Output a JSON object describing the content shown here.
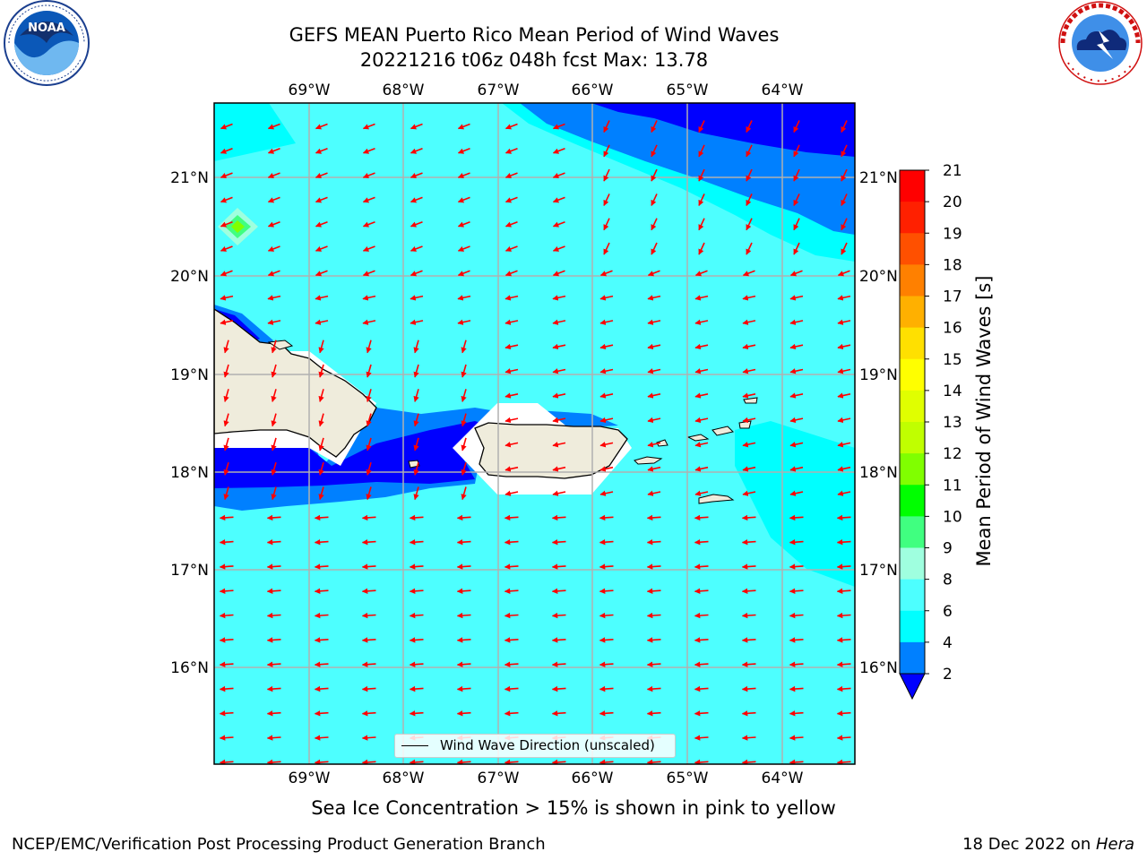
{
  "header": {
    "title_line1": "GEFS MEAN Puerto Rico Mean Period of Wind Waves",
    "title_line2": "20221216 t06z 048h fcst   Max: 13.78"
  },
  "logos": {
    "noaa": {
      "icon": "noaa-logo",
      "text": "NOAA",
      "ring_text": "NATIONAL OCEANIC AND ATMOSPHERIC ADMINISTRATION · U.S. DEPARTMENT OF COMMERCE"
    },
    "nws": {
      "icon": "nws-logo",
      "ring_text": "NATIONAL WEATHER SERVICE"
    }
  },
  "map": {
    "lon_labels": [
      "69°W",
      "68°W",
      "67°W",
      "66°W",
      "65°W",
      "64°W"
    ],
    "lat_labels": [
      "21°N",
      "20°N",
      "19°N",
      "18°N",
      "17°N",
      "16°N"
    ],
    "legend_label": "Wind Wave Direction (unscaled)",
    "colors": {
      "level_2_4": "#0080ff",
      "level_4_6": "#00ffff",
      "level_6_8": "#4dffff",
      "below_2": "#0000ff",
      "land": "#efecdc",
      "arrows": "#ff0000",
      "grid": "#b0b0b0"
    }
  },
  "colorbar": {
    "label": "Mean Period of Wind Waves [s]",
    "ticks": [
      "21",
      "20",
      "19",
      "18",
      "17",
      "16",
      "15",
      "14",
      "13",
      "12",
      "11",
      "10",
      "9",
      "8",
      "6",
      "4",
      "2"
    ],
    "colors": [
      "#ff0000",
      "#ff2000",
      "#ff5000",
      "#ff8000",
      "#ffb000",
      "#ffe000",
      "#ffff00",
      "#e0ff00",
      "#c0ff00",
      "#80ff00",
      "#00ff00",
      "#40ff80",
      "#9fffdf",
      "#4dffff",
      "#00ffff",
      "#0080ff"
    ],
    "extend_color": "#0000ff"
  },
  "footer": {
    "note": "Sea Ice Concentration > 15% is shown in pink to yellow",
    "credit": "NCEP/EMC/Verification Post Processing Product Generation Branch",
    "date_prefix": "18 Dec 2022 on ",
    "machine": "Hera"
  }
}
